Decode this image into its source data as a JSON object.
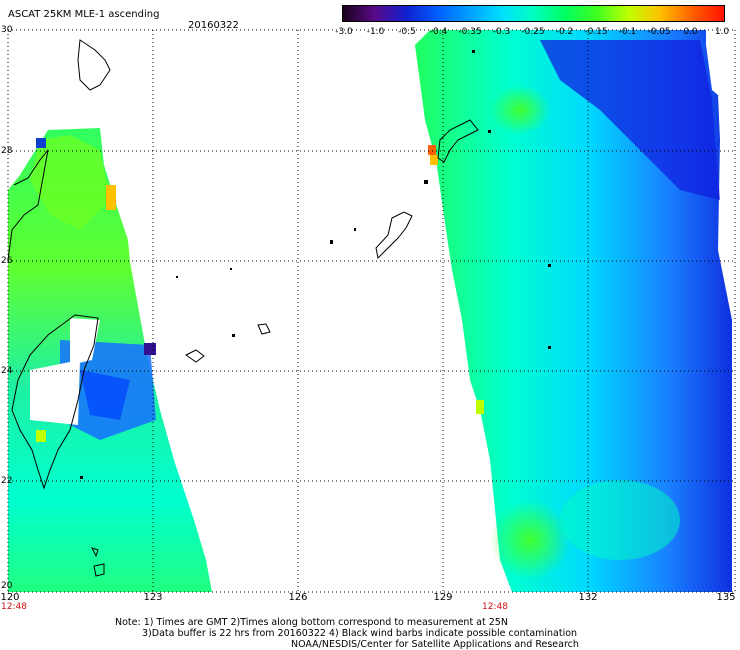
{
  "header": {
    "title": "ASCAT 25KM MLE-1 ascending",
    "date": "20160322"
  },
  "colorbar": {
    "labels": [
      "-3.0",
      "-1.0",
      "-0.5",
      "-0.4",
      "-0.35",
      "-0.3",
      "-0.25",
      "-0.2",
      "-0.15",
      "-0.1",
      "-0.05",
      "0.0",
      "1.0"
    ],
    "colors": [
      "#1a001a",
      "#5a0a8a",
      "#1020d0",
      "#0060ff",
      "#00a0ff",
      "#00e0ff",
      "#00ffc0",
      "#00ff60",
      "#40ff20",
      "#c0ff00",
      "#ffc000",
      "#ff6000",
      "#ff1000"
    ]
  },
  "axes": {
    "lat_labels": [
      "30",
      "28",
      "26",
      "24",
      "22",
      "20"
    ],
    "lon_labels": [
      "120",
      "123",
      "126",
      "129",
      "132",
      "135"
    ],
    "time_labels": [
      "12:48",
      "12:48"
    ]
  },
  "notes": [
    "Note: 1) Times are GMT 2)Times along bottom correspond to measurement at 25N",
    "3)Data buffer is 22 hrs from 20160322 4) Black wind barbs indicate possible contamination",
    "NOAA/NESDIS/Center for Satellite Applications and Research"
  ]
}
